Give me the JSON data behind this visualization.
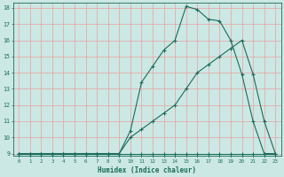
{
  "xlabel": "Humidex (Indice chaleur)",
  "bg_color": "#cce8e4",
  "line_color": "#1a6b5a",
  "grid_color": "#e8a0a0",
  "xmin": 0,
  "xmax": 23,
  "ymin": 9,
  "ymax": 18,
  "line1_x": [
    0,
    1,
    2,
    3,
    4,
    5,
    6,
    7,
    8,
    9,
    10,
    11,
    12,
    13,
    14,
    15,
    16,
    17,
    18,
    19,
    20,
    21,
    22,
    23
  ],
  "line1_y": [
    9,
    9,
    9,
    9,
    9,
    9,
    9,
    9,
    9,
    9,
    9,
    9,
    9,
    9,
    9,
    9,
    9,
    9,
    9,
    9,
    9,
    9,
    9,
    9
  ],
  "line2_x": [
    0,
    2,
    3,
    4,
    5,
    6,
    7,
    8,
    9,
    10,
    11,
    12,
    13,
    14,
    15,
    16,
    17,
    18,
    19,
    20,
    21,
    22,
    23
  ],
  "line2_y": [
    9,
    9,
    9,
    9,
    9,
    9,
    9,
    9,
    9,
    10,
    10.5,
    11,
    11.5,
    12,
    13,
    14,
    14.5,
    15,
    15.5,
    16,
    13.9,
    11,
    9
  ],
  "line3_x": [
    0,
    1,
    2,
    3,
    4,
    5,
    6,
    7,
    8,
    9,
    10,
    11,
    12,
    13,
    14,
    15,
    16,
    17,
    18,
    19,
    20,
    21,
    22,
    23
  ],
  "line3_y": [
    9,
    9,
    9,
    9,
    9,
    9,
    9,
    9,
    9,
    9,
    10.4,
    13.4,
    14.4,
    15.4,
    16.0,
    18.1,
    17.9,
    17.3,
    17.2,
    16,
    13.9,
    11,
    9,
    9
  ]
}
